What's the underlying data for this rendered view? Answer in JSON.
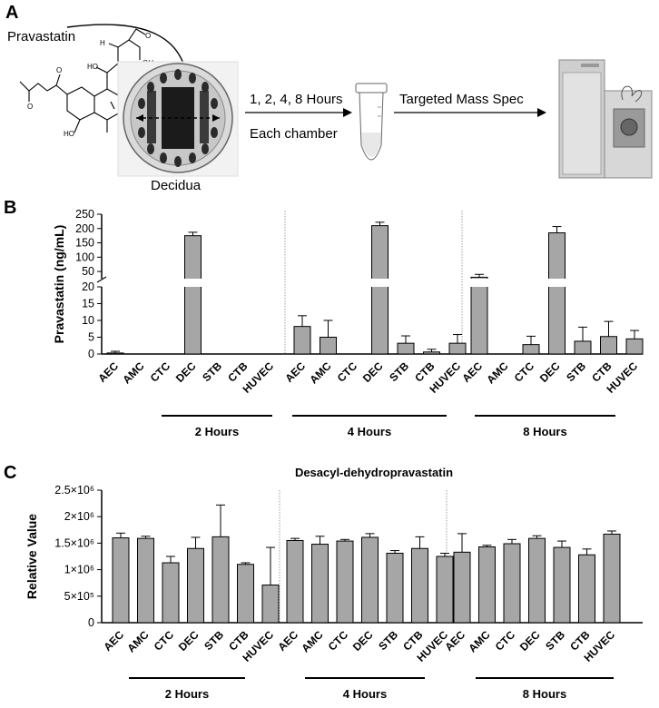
{
  "panel_a": {
    "letter": "A",
    "drug_label": "Pravastatin",
    "tissue_label": "Decidua",
    "time_line1": "1, 2, 4, 8 Hours",
    "time_line2": "Each chamber",
    "method_label": "Targeted Mass Spec",
    "chemical_labels": [
      "O",
      "HO",
      "OH",
      "HO",
      "O",
      "O",
      "H"
    ]
  },
  "colors": {
    "bar_fill": "#a6a6a6",
    "stroke": "#000000",
    "divider": "#888888"
  },
  "chart_data": [
    {
      "panel": "B",
      "type": "bar",
      "title": "",
      "ylabel": "Pravastatin (ng/mL)",
      "ylim_lower": [
        0,
        20
      ],
      "ylim_upper": [
        25,
        250
      ],
      "yticks_lower": [
        "0",
        "5",
        "10",
        "15",
        "20"
      ],
      "yticks_upper": [
        "50",
        "100",
        "150",
        "200",
        "250"
      ],
      "categories": [
        "AEC",
        "AMC",
        "CTC",
        "DEC",
        "STB",
        "CTB",
        "HUVEC"
      ],
      "groups": [
        {
          "name": "2 Hours",
          "values": [
            0.3,
            0,
            0,
            175,
            0,
            0,
            0
          ],
          "errors": [
            0.5,
            0,
            0,
            12,
            0,
            0,
            0
          ]
        },
        {
          "name": "4 Hours",
          "values": [
            8.2,
            5.0,
            0,
            210,
            3.2,
            0.6,
            3.2
          ],
          "errors": [
            3.2,
            5.0,
            0,
            12,
            2.2,
            0.8,
            2.6
          ]
        },
        {
          "name": "8 Hours",
          "values": [
            30,
            0,
            2.8,
            185,
            3.8,
            5.2,
            4.5
          ],
          "errors": [
            10,
            0,
            2.5,
            22,
            4.2,
            4.5,
            2.5
          ]
        }
      ]
    },
    {
      "panel": "C",
      "type": "bar",
      "title": "Desacyl-dehydropravastatin",
      "ylabel": "Relative Value",
      "ylim": [
        0,
        2500000
      ],
      "yticks": [
        "0",
        "5×10⁵",
        "1×10⁶",
        "1.5×10⁶",
        "2×10⁶",
        "2.5×10⁶"
      ],
      "categories": [
        "AEC",
        "AMC",
        "CTC",
        "DEC",
        "STB",
        "CTB",
        "HUVEC"
      ],
      "groups": [
        {
          "name": "2 Hours",
          "values": [
            1600000,
            1590000,
            1130000,
            1400000,
            1620000,
            1100000,
            710000
          ],
          "errors": [
            90000,
            40000,
            120000,
            210000,
            600000,
            30000,
            710000
          ]
        },
        {
          "name": "4 Hours",
          "values": [
            1550000,
            1480000,
            1540000,
            1610000,
            1310000,
            1400000,
            1250000
          ],
          "errors": [
            40000,
            150000,
            30000,
            70000,
            50000,
            220000,
            60000
          ]
        },
        {
          "name": "8 Hours",
          "values": [
            1330000,
            1430000,
            1490000,
            1590000,
            1420000,
            1280000,
            1670000
          ],
          "errors": [
            350000,
            30000,
            80000,
            50000,
            120000,
            110000,
            60000
          ]
        }
      ]
    }
  ]
}
